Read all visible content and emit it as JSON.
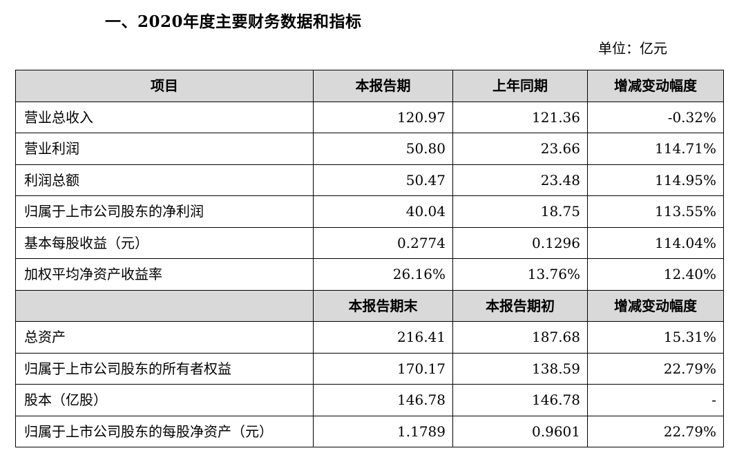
{
  "title": "一、2020年度主要财务数据和指标",
  "unit": "单位：亿元",
  "header1": [
    "项目",
    "本报告期",
    "上年同期",
    "增减变动幅度"
  ],
  "rows1": [
    {
      "label": "营业总收入",
      "v1": "120.97",
      "v2": "121.36",
      "v3": "-0.32%"
    },
    {
      "label": "营业利润",
      "v1": "50.80",
      "v2": "23.66",
      "v3": "114.71%"
    },
    {
      "label": "利润总额",
      "v1": "50.47",
      "v2": "23.48",
      "v3": "114.95%"
    },
    {
      "label": "归属于上市公司股东的净利润",
      "v1": "40.04",
      "v2": "18.75",
      "v3": "113.55%"
    },
    {
      "label": "基本每股收益（元）",
      "v1": "0.2774",
      "v2": "0.1296",
      "v3": "114.04%"
    },
    {
      "label": "加权平均净资产收益率",
      "v1": "26.16%",
      "v2": "13.76%",
      "v3": "12.40%"
    }
  ],
  "header2": [
    "",
    "本报告期末",
    "本报告期初",
    "增减变动幅度"
  ],
  "rows2": [
    {
      "label": "总资产",
      "v1": "216.41",
      "v2": "187.68",
      "v3": "15.31%"
    },
    {
      "label": "归属于上市公司股东的所有者权益",
      "v1": "170.17",
      "v2": "138.59",
      "v3": "22.79%"
    },
    {
      "label": "股本（亿股）",
      "v1": "146.78",
      "v2": "146.78",
      "v3": "-"
    },
    {
      "label": "归属于上市公司股东的每股净资产（元）",
      "v1": "1.1789",
      "v2": "0.9601",
      "v3": "22.79%"
    }
  ]
}
